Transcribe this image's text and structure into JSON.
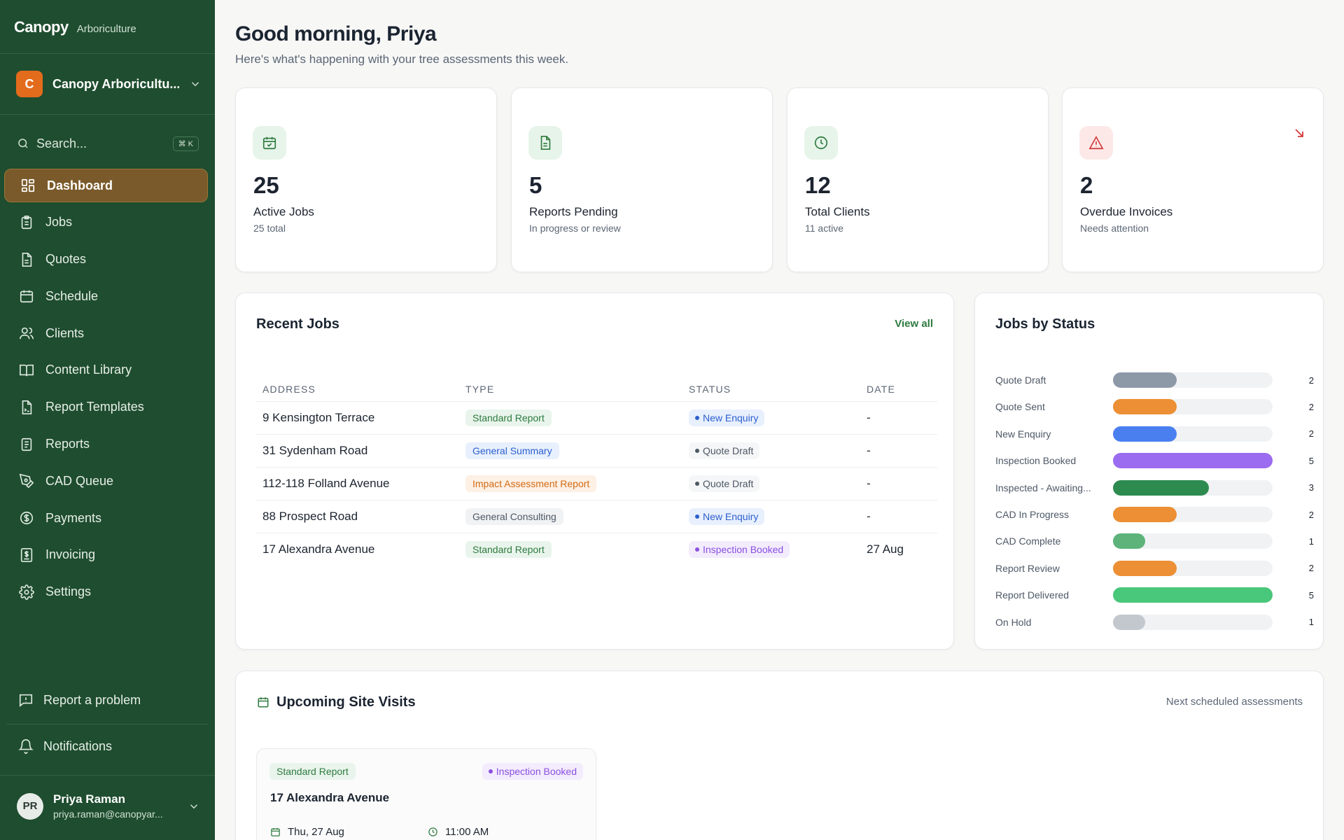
{
  "brand": {
    "name": "Canopy",
    "sub": "Arboriculture"
  },
  "org": {
    "initial": "C",
    "name": "Canopy Arboricultu..."
  },
  "search": {
    "placeholder": "Search...",
    "shortcut": "⌘ K"
  },
  "nav": [
    {
      "label": "Dashboard",
      "icon": "dashboard-icon",
      "active": true
    },
    {
      "label": "Jobs",
      "icon": "clipboard-icon"
    },
    {
      "label": "Quotes",
      "icon": "document-icon"
    },
    {
      "label": "Schedule",
      "icon": "calendar-icon"
    },
    {
      "label": "Clients",
      "icon": "users-icon"
    },
    {
      "label": "Content Library",
      "icon": "book-icon"
    },
    {
      "label": "Report Templates",
      "icon": "template-icon"
    },
    {
      "label": "Reports",
      "icon": "report-icon"
    },
    {
      "label": "CAD Queue",
      "icon": "pen-tool-icon"
    },
    {
      "label": "Payments",
      "icon": "dollar-icon"
    },
    {
      "label": "Invoicing",
      "icon": "invoice-icon"
    },
    {
      "label": "Settings",
      "icon": "gear-icon"
    }
  ],
  "footer": {
    "report_problem": "Report a problem",
    "notifications": "Notifications"
  },
  "user": {
    "initials": "PR",
    "name": "Priya Raman",
    "email": "priya.raman@canopyar..."
  },
  "header": {
    "greeting": "Good morning, Priya",
    "subtitle": "Here's what's happening with your tree assessments this week."
  },
  "stats": [
    {
      "value": "25",
      "label": "Active Jobs",
      "sub": "25 total",
      "icon": "calendar-check-icon",
      "tint": "#e7f4ea",
      "color": "#2e7a3f"
    },
    {
      "value": "5",
      "label": "Reports Pending",
      "sub": "In progress or review",
      "icon": "file-text-icon",
      "tint": "#e7f4ea",
      "color": "#2e7a3f"
    },
    {
      "value": "12",
      "label": "Total Clients",
      "sub": "11 active",
      "icon": "clock-icon",
      "tint": "#e7f4ea",
      "color": "#2e7a3f"
    },
    {
      "value": "2",
      "label": "Overdue Invoices",
      "sub": "Needs attention",
      "icon": "alert-triangle-icon",
      "tint": "#fde8e8",
      "color": "#d23a3a"
    }
  ],
  "recent_jobs": {
    "title": "Recent Jobs",
    "view_all": "View all",
    "columns": [
      "ADDRESS",
      "TYPE",
      "STATUS",
      "DATE"
    ],
    "rows": [
      {
        "address": "9 Kensington Terrace",
        "type": "Standard Report",
        "type_kind": "green",
        "status": "New Enquiry",
        "status_kind": "blue",
        "date": "-"
      },
      {
        "address": "31 Sydenham Road",
        "type": "General Summary",
        "type_kind": "blue",
        "status": "Quote Draft",
        "status_kind": "gray",
        "date": "-"
      },
      {
        "address": "112-118 Folland Avenue",
        "type": "Impact Assessment Report",
        "type_kind": "orange",
        "status": "Quote Draft",
        "status_kind": "gray",
        "date": "-"
      },
      {
        "address": "88 Prospect Road",
        "type": "General Consulting",
        "type_kind": "gray",
        "status": "New Enquiry",
        "status_kind": "blue",
        "date": "-"
      },
      {
        "address": "17 Alexandra Avenue",
        "type": "Standard Report",
        "type_kind": "green",
        "status": "Inspection Booked",
        "status_kind": "purple",
        "date": "27 Aug"
      }
    ]
  },
  "chart_data": {
    "type": "bar",
    "title": "Jobs by Status",
    "categories": [
      "Quote Draft",
      "Quote Sent",
      "New Enquiry",
      "Inspection Booked",
      "Inspected - Awaiting...",
      "CAD In Progress",
      "CAD Complete",
      "Report Review",
      "Report Delivered",
      "On Hold"
    ],
    "values": [
      2,
      2,
      2,
      5,
      3,
      2,
      1,
      2,
      5,
      1
    ],
    "colors": [
      "#8e99a8",
      "#ec8f35",
      "#4a7ff0",
      "#9b6bf0",
      "#2e8b50",
      "#ec8f35",
      "#5db37a",
      "#ec8f35",
      "#49c77a",
      "#c3c8cf"
    ],
    "xlim": [
      0,
      5
    ]
  },
  "visits": {
    "title": "Upcoming Site Visits",
    "subtitle": "Next scheduled assessments",
    "card": {
      "type": "Standard Report",
      "status": "Inspection Booked",
      "address": "17 Alexandra Avenue",
      "date": "Thu, 27 Aug",
      "time": "11:00 AM"
    }
  }
}
